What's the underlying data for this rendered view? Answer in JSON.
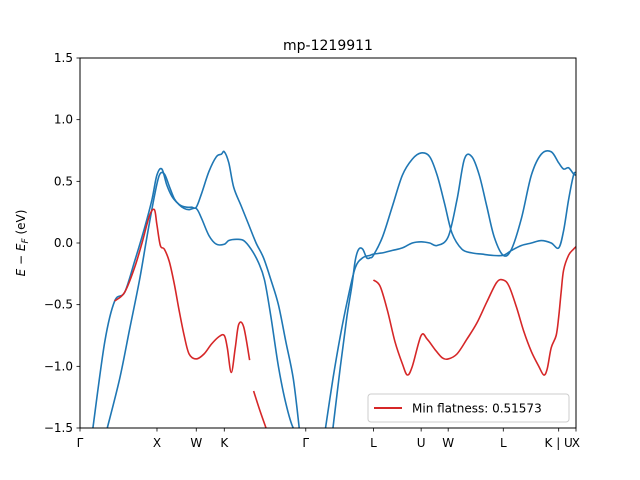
{
  "chart_data": {
    "type": "line",
    "title": "mp-1219911",
    "ylabel_parts": [
      "E",
      " − ",
      "E",
      "F",
      " (eV)"
    ],
    "ylim": [
      -1.5,
      1.5
    ],
    "yticks": [
      -1.5,
      -1.0,
      -0.5,
      0.0,
      0.5,
      1.0,
      1.5
    ],
    "ytick_labels": [
      "−1.5",
      "−1.0",
      "−0.5",
      "0.0",
      "0.5",
      "1.0",
      "1.5"
    ],
    "xlim": [
      0,
      10
    ],
    "xticks": [
      0,
      1.552,
      2.344,
      2.909,
      4.552,
      5.916,
      6.878,
      7.423,
      8.534,
      9.651,
      10
    ],
    "xtick_labels": [
      "Γ",
      "X",
      "W",
      "K",
      "Γ",
      "L",
      "U",
      "W",
      "L",
      "K | U",
      "X"
    ],
    "band_color": "#1f77b4",
    "flat_color": "#d62728",
    "legend": {
      "label": "Min flatness: 0.51573",
      "position": "lower right"
    },
    "bands": [
      {
        "x": [
          0.26,
          0.5,
          0.7,
          0.9,
          1.1,
          1.3,
          1.45,
          1.55,
          1.65,
          1.75,
          1.85,
          1.95,
          2.05,
          2.15,
          2.25,
          2.344,
          2.45,
          2.6,
          2.75,
          2.85,
          2.909,
          3.0,
          3.1,
          3.25,
          3.4,
          3.55,
          3.7,
          3.85,
          4.0,
          4.15,
          4.3,
          4.42
        ],
        "y": [
          -1.5,
          -0.8,
          -0.47,
          -0.4,
          -0.15,
          0.12,
          0.35,
          0.55,
          0.6,
          0.47,
          0.38,
          0.33,
          0.3,
          0.29,
          0.29,
          0.29,
          0.4,
          0.58,
          0.7,
          0.72,
          0.74,
          0.65,
          0.45,
          0.3,
          0.15,
          0.0,
          -0.12,
          -0.3,
          -0.5,
          -0.8,
          -1.1,
          -1.5
        ]
      },
      {
        "x": [
          0.55,
          0.8,
          1.0,
          1.2,
          1.35,
          1.5,
          1.6,
          1.7,
          1.8,
          1.9,
          2.0,
          2.1,
          2.2,
          2.344,
          2.45,
          2.6,
          2.75,
          2.909,
          3.0,
          3.15,
          3.3,
          3.45,
          3.6,
          3.72,
          3.85,
          4.0,
          4.15,
          4.3,
          4.42
        ],
        "y": [
          -1.5,
          -1.1,
          -0.7,
          -0.3,
          0.05,
          0.38,
          0.55,
          0.56,
          0.46,
          0.36,
          0.31,
          0.28,
          0.27,
          0.28,
          0.2,
          0.06,
          -0.01,
          -0.01,
          0.02,
          0.03,
          0.02,
          -0.05,
          -0.16,
          -0.3,
          -0.6,
          -1.0,
          -1.3,
          -1.5,
          -1.5
        ]
      },
      {
        "x": [
          5.1,
          5.25,
          5.38,
          5.48,
          5.55,
          5.62,
          5.7,
          5.78,
          5.85,
          5.916,
          6.1,
          6.3,
          6.5,
          6.7,
          6.878,
          7.05,
          7.2,
          7.35,
          7.5,
          7.7,
          7.9,
          8.1,
          8.3,
          8.534,
          8.7,
          8.9,
          9.1,
          9.3,
          9.5,
          9.651,
          9.75,
          9.85,
          9.95,
          10.0
        ],
        "y": [
          -1.5,
          -1.0,
          -0.6,
          -0.35,
          -0.14,
          -0.05,
          -0.05,
          -0.12,
          -0.12,
          -0.1,
          0.05,
          0.3,
          0.55,
          0.68,
          0.73,
          0.7,
          0.55,
          0.32,
          0.08,
          -0.05,
          -0.08,
          -0.09,
          -0.1,
          -0.1,
          -0.06,
          -0.02,
          0.0,
          0.02,
          0.0,
          -0.04,
          0.1,
          0.35,
          0.55,
          0.57
        ]
      },
      {
        "x": [
          4.95,
          5.1,
          5.25,
          5.4,
          5.55,
          5.7,
          5.85,
          5.916,
          6.1,
          6.3,
          6.5,
          6.7,
          6.878,
          7.05,
          7.2,
          7.423,
          7.6,
          7.75,
          7.9,
          8.05,
          8.2,
          8.35,
          8.534,
          8.7,
          8.9,
          9.1,
          9.3,
          9.5,
          9.651,
          9.75,
          9.85,
          9.95,
          10.0
        ],
        "y": [
          -1.5,
          -1.1,
          -0.75,
          -0.45,
          -0.2,
          -0.12,
          -0.1,
          -0.09,
          -0.08,
          -0.06,
          -0.04,
          0.0,
          0.01,
          0.0,
          -0.02,
          0.05,
          0.35,
          0.68,
          0.7,
          0.55,
          0.3,
          0.05,
          -0.1,
          -0.05,
          0.2,
          0.55,
          0.72,
          0.74,
          0.65,
          0.6,
          0.61,
          0.56,
          0.55
        ]
      }
    ],
    "flat_band": {
      "segments": [
        {
          "x": [
            0.7,
            0.9,
            1.1,
            1.25,
            1.4,
            1.5,
            1.55,
            1.62,
            1.7,
            1.8,
            1.9,
            2.0,
            2.1,
            2.2,
            2.344,
            2.5,
            2.65,
            2.8,
            2.909,
            2.97,
            3.05,
            3.13,
            3.2,
            3.3,
            3.42
          ],
          "y": [
            -0.47,
            -0.4,
            -0.2,
            0.0,
            0.22,
            0.27,
            0.15,
            -0.02,
            -0.05,
            -0.15,
            -0.33,
            -0.55,
            -0.75,
            -0.9,
            -0.94,
            -0.9,
            -0.82,
            -0.76,
            -0.75,
            -0.85,
            -1.05,
            -0.85,
            -0.66,
            -0.68,
            -0.95
          ]
        },
        {
          "x": [
            3.5,
            3.62,
            3.75
          ],
          "y": [
            -1.2,
            -1.35,
            -1.5
          ]
        },
        {
          "x": [
            5.916,
            6.05,
            6.2,
            6.35,
            6.5,
            6.6,
            6.7,
            6.878,
            7.0,
            7.15,
            7.3,
            7.423,
            7.6,
            7.8,
            8.0,
            8.2,
            8.4,
            8.534,
            8.65,
            8.8,
            8.95,
            9.1,
            9.25,
            9.35,
            9.42,
            9.5,
            9.6,
            9.651,
            9.7,
            9.75,
            9.85,
            9.95,
            10.0
          ],
          "y": [
            -0.3,
            -0.35,
            -0.55,
            -0.8,
            -0.98,
            -1.07,
            -1.0,
            -0.75,
            -0.78,
            -0.86,
            -0.93,
            -0.94,
            -0.9,
            -0.78,
            -0.65,
            -0.48,
            -0.32,
            -0.3,
            -0.35,
            -0.52,
            -0.72,
            -0.88,
            -1.0,
            -1.07,
            -1.02,
            -0.85,
            -0.75,
            -0.6,
            -0.4,
            -0.22,
            -0.1,
            -0.05,
            -0.03
          ]
        }
      ]
    }
  }
}
